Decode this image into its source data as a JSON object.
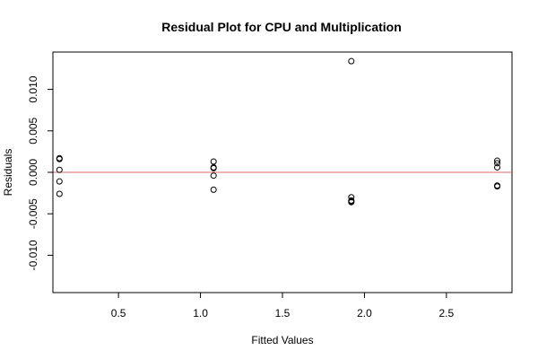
{
  "chart_data": {
    "type": "scatter",
    "title": "Residual Plot for CPU and Multiplication",
    "xlabel": "Fitted Values",
    "ylabel": "Residuals",
    "xlim": [
      0.1,
      2.9
    ],
    "ylim": [
      -0.0145,
      0.0145
    ],
    "x_ticks": [
      {
        "value": 0.5,
        "label": "0.5"
      },
      {
        "value": 1.0,
        "label": "1.0"
      },
      {
        "value": 1.5,
        "label": "1.5"
      },
      {
        "value": 2.0,
        "label": "2.0"
      },
      {
        "value": 2.5,
        "label": "2.5"
      }
    ],
    "y_ticks": [
      {
        "value": -0.01,
        "label": "-0.010"
      },
      {
        "value": -0.005,
        "label": "-0.005"
      },
      {
        "value": 0.0,
        "label": "0.000"
      },
      {
        "value": 0.005,
        "label": "0.005"
      },
      {
        "value": 0.01,
        "label": "0.010"
      }
    ],
    "reference_line": {
      "y": 0,
      "color": "#e06666"
    },
    "point_color": "#000000",
    "points": [
      {
        "x": 0.14,
        "y": 0.0017
      },
      {
        "x": 0.14,
        "y": 0.0016
      },
      {
        "x": 0.14,
        "y": 0.0003
      },
      {
        "x": 0.14,
        "y": -0.0011
      },
      {
        "x": 0.14,
        "y": -0.0026
      },
      {
        "x": 1.08,
        "y": 0.0013
      },
      {
        "x": 1.08,
        "y": 0.0006
      },
      {
        "x": 1.08,
        "y": 0.0005
      },
      {
        "x": 1.08,
        "y": -0.0004
      },
      {
        "x": 1.08,
        "y": -0.0021
      },
      {
        "x": 1.92,
        "y": 0.0134
      },
      {
        "x": 1.92,
        "y": -0.003
      },
      {
        "x": 1.92,
        "y": -0.0034
      },
      {
        "x": 1.92,
        "y": -0.0036
      },
      {
        "x": 1.92,
        "y": -0.0035
      },
      {
        "x": 2.81,
        "y": 0.0014
      },
      {
        "x": 2.81,
        "y": 0.0011
      },
      {
        "x": 2.81,
        "y": 0.0006
      },
      {
        "x": 2.81,
        "y": -0.0016
      },
      {
        "x": 2.81,
        "y": -0.0017
      }
    ]
  }
}
